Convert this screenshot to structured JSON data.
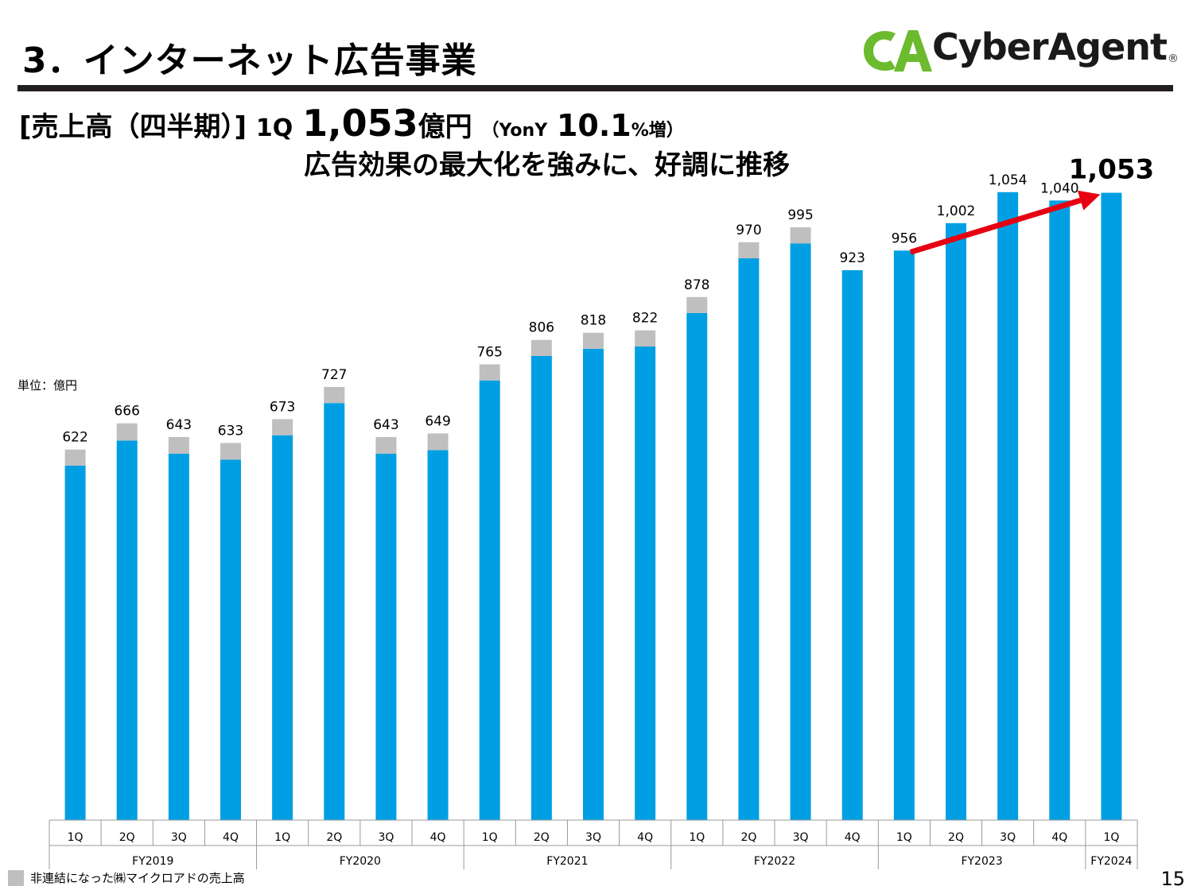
{
  "slide": {
    "title": "3．インターネット広告事業",
    "headline": {
      "bracket_label": "[売上高（四半期）]",
      "quarter": "1Q",
      "value": "1,053",
      "unit": "億円",
      "yony_open": "（YonY",
      "yony_value": "10.1",
      "yony_suffix": "%増）"
    },
    "subheadline": "広告効果の最大化を強みに、好調に推移",
    "unit_label": "単位：億円",
    "legend_label": "非連結になった㈱マイクロアドの売上高",
    "page_number": "15"
  },
  "logo": {
    "text": "CyberAgent",
    "mark": "CA",
    "registered": "®"
  },
  "colors": {
    "bar_blue": "#009fe3",
    "bar_gray": "#bfbfbf",
    "arrow_red": "#e60012",
    "logo_green": "#6cbb2e",
    "rule": "#231f20"
  },
  "chart_data": {
    "type": "bar",
    "stacked": true,
    "categories": [
      "1Q",
      "2Q",
      "3Q",
      "4Q",
      "1Q",
      "2Q",
      "3Q",
      "4Q",
      "1Q",
      "2Q",
      "3Q",
      "4Q",
      "1Q",
      "2Q",
      "3Q",
      "4Q",
      "1Q",
      "2Q",
      "3Q",
      "4Q",
      "1Q"
    ],
    "groups": [
      {
        "label": "FY2019",
        "span": 4
      },
      {
        "label": "FY2020",
        "span": 4
      },
      {
        "label": "FY2021",
        "span": 4
      },
      {
        "label": "FY2022",
        "span": 4
      },
      {
        "label": "FY2023",
        "span": 4
      },
      {
        "label": "FY2024",
        "span": 1
      }
    ],
    "totals": [
      622,
      666,
      643,
      633,
      673,
      727,
      643,
      649,
      765,
      806,
      818,
      822,
      878,
      970,
      995,
      923,
      956,
      1002,
      1054,
      1040,
      1053
    ],
    "total_labels": [
      "622",
      "666",
      "643",
      "633",
      "673",
      "727",
      "643",
      "649",
      "765",
      "806",
      "818",
      "822",
      "878",
      "970",
      "995",
      "923",
      "956",
      "1,002",
      "1,054",
      "1,040",
      "1,053"
    ],
    "series": [
      {
        "values": [
          595,
          637,
          615,
          605,
          646,
          700,
          615,
          621,
          738,
          779,
          791,
          795,
          851,
          943,
          968,
          923,
          956,
          1002,
          1054,
          1040,
          1053
        ]
      },
      {
        "name": "非連結になった㈱マイクロアドの売上高",
        "values": [
          27,
          29,
          28,
          28,
          27,
          27,
          28,
          28,
          27,
          27,
          27,
          27,
          27,
          27,
          27,
          0,
          0,
          0,
          0,
          0,
          0
        ]
      }
    ],
    "annotation": {
      "type": "arrow",
      "from_index": 16,
      "to_index": 20
    },
    "ylim": [
      0,
      1100
    ],
    "grid": false,
    "legend_position": "bottom-left"
  }
}
